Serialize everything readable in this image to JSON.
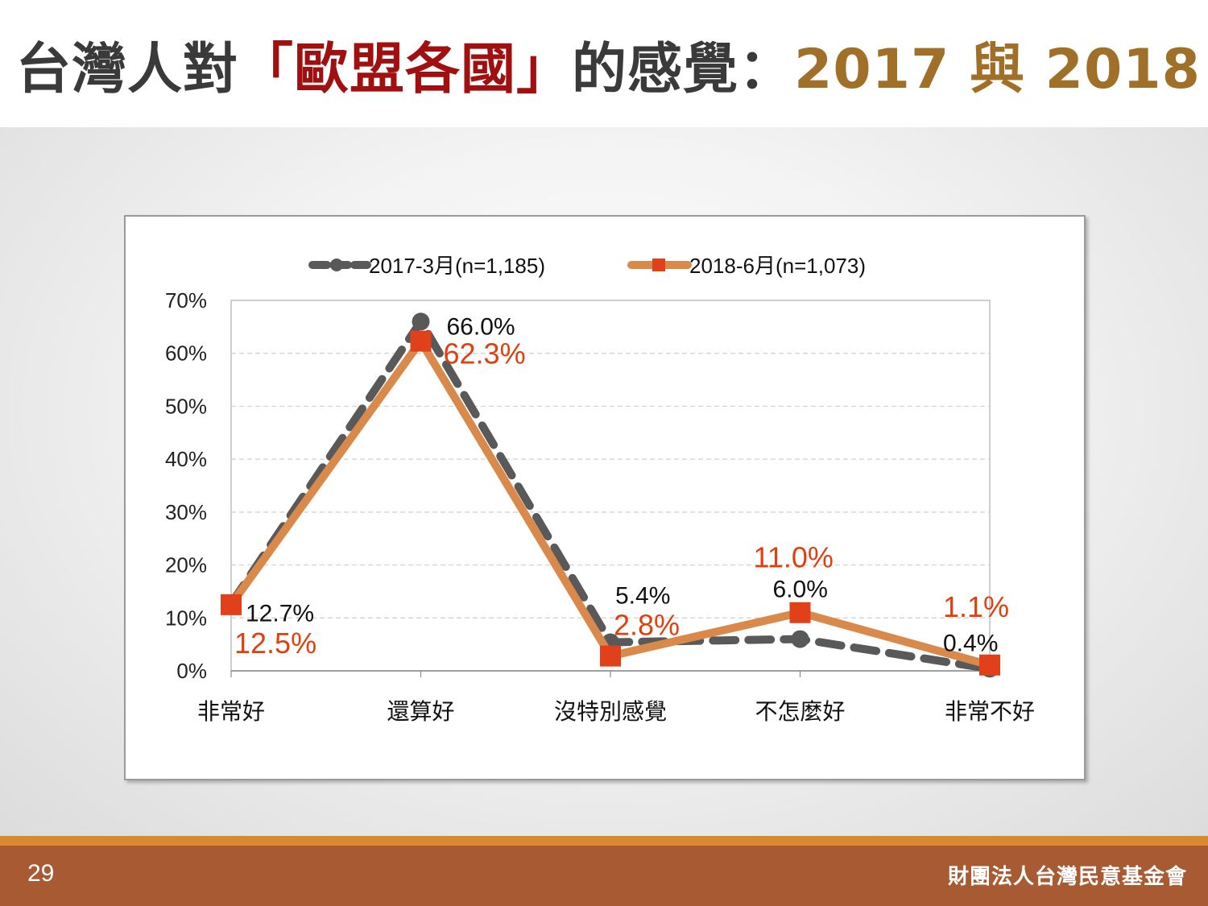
{
  "title": {
    "part1": "台灣人對",
    "part2": "「歐盟各國」",
    "part3": "的感覺：",
    "part4": "2017 與 2018"
  },
  "footer": {
    "page_number": "29",
    "organization": "財團法人台灣民意基金會"
  },
  "colors": {
    "series_2017": "#595959",
    "series_2018": "#d98a4a",
    "marker_2018": "#e0401a",
    "label_2018": "#e04010"
  },
  "chart_data": {
    "type": "line",
    "categories": [
      "非常好",
      "還算好",
      "沒特別感覺",
      "不怎麼好",
      "非常不好"
    ],
    "series": [
      {
        "name": "2017-3月(n=1,185)",
        "values": [
          12.7,
          66.0,
          5.4,
          6.0,
          0.4
        ],
        "labels": [
          "12.7%",
          "66.0%",
          "5.4%",
          "6.0%",
          "0.4%"
        ],
        "line_style": "dashed",
        "marker": "circle"
      },
      {
        "name": "2018-6月(n=1,073)",
        "values": [
          12.5,
          62.3,
          2.8,
          11.0,
          1.1
        ],
        "labels": [
          "12.5%",
          "62.3%",
          "2.8%",
          "11.0%",
          "1.1%"
        ],
        "line_style": "solid",
        "marker": "square"
      }
    ],
    "y_ticks": [
      "0%",
      "10%",
      "20%",
      "30%",
      "40%",
      "50%",
      "60%",
      "70%"
    ],
    "ylim": [
      0,
      70
    ],
    "grid": true,
    "legend_position": "top"
  }
}
